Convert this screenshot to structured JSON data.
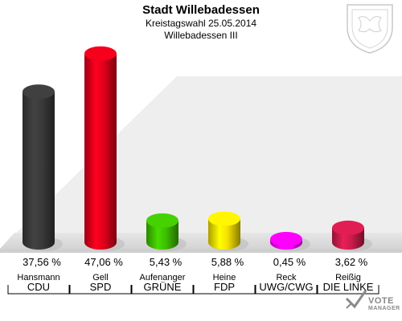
{
  "header": {
    "title": "Stadt Willebadessen",
    "subtitle": "Kreistagswahl 25.05.2014",
    "district": "Willebadessen III"
  },
  "chart_data": {
    "type": "bar",
    "title": "Stadt Willebadessen",
    "ylim": [
      0,
      50
    ],
    "categories": [
      "CDU",
      "SPD",
      "GRÜNE",
      "FDP",
      "UWG/CWG",
      "DIE LINKE"
    ],
    "candidates": [
      "Hansmann",
      "Gell",
      "Aufenanger",
      "Heine",
      "Reck",
      "Reißig"
    ],
    "values": [
      37.56,
      47.06,
      5.43,
      5.88,
      0.45,
      3.62
    ],
    "value_labels": [
      "37,56 %",
      "47,06 %",
      "5,43 %",
      "5,88 %",
      "0,45 %",
      "3,62 %"
    ],
    "colors": [
      "#3a3a3a",
      "#e0001b",
      "#3fbf00",
      "#f4e000",
      "#ff00ff",
      "#cc1b4b"
    ]
  },
  "logo": {
    "line1": "VOTE",
    "line2": "MANAGER"
  }
}
